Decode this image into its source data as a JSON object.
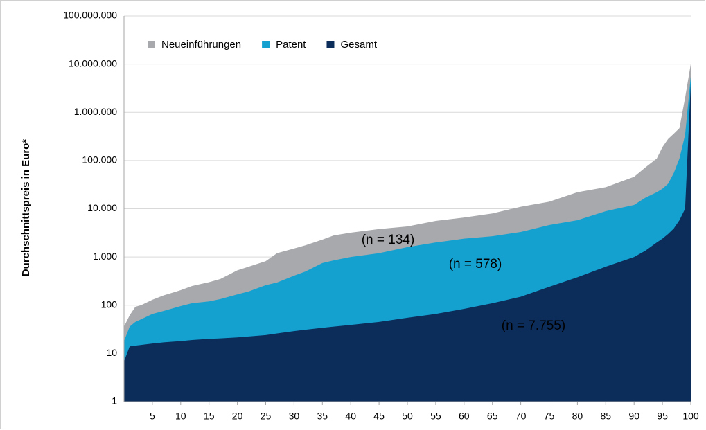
{
  "chart_data": {
    "type": "area",
    "y_label": "Durchschnittspreis in Euro*",
    "log_y": true,
    "grid": true,
    "legend": "top-left",
    "x": [
      0,
      1,
      2,
      3,
      5,
      7,
      10,
      12,
      15,
      17,
      20,
      22,
      25,
      27,
      30,
      32,
      35,
      37,
      40,
      45,
      50,
      55,
      60,
      65,
      70,
      75,
      80,
      85,
      90,
      92,
      94,
      95,
      96,
      97,
      98,
      99,
      100
    ],
    "series": [
      {
        "name": "Neueinführungen",
        "color": "#a7a9ac",
        "values": [
          36,
          62,
          93,
          100,
          130,
          160,
          205,
          250,
          300,
          350,
          530,
          630,
          820,
          1200,
          1500,
          1750,
          2300,
          2800,
          3200,
          3800,
          4300,
          5600,
          6600,
          8000,
          11000,
          14000,
          22000,
          28000,
          46000,
          72000,
          110000,
          190000,
          280000,
          360000,
          470000,
          2000000,
          10000000
        ]
      },
      {
        "name": "Patent",
        "color": "#14a1d0",
        "values": [
          18,
          36,
          45,
          51,
          66,
          76,
          96,
          110,
          120,
          134,
          168,
          193,
          260,
          295,
          410,
          500,
          750,
          850,
          1000,
          1200,
          1600,
          2000,
          2400,
          2700,
          3300,
          4600,
          5800,
          8900,
          12000,
          17000,
          22000,
          26000,
          33000,
          55000,
          110000,
          340000,
          5500000
        ]
      },
      {
        "name": "Gesamt",
        "color": "#0c2c5a",
        "values": [
          6.8,
          14,
          14.5,
          15,
          16,
          17,
          18,
          19,
          20,
          20.5,
          21.5,
          22.5,
          24,
          26,
          29,
          31,
          34,
          36,
          39,
          45,
          55,
          66,
          84,
          110,
          150,
          240,
          380,
          630,
          1000,
          1350,
          2000,
          2400,
          3000,
          3900,
          5800,
          10000,
          4000000
        ]
      }
    ],
    "annotations": [
      "(n = 134)",
      "(n = 578)",
      "(n = 7.755)"
    ],
    "xlim": [
      0,
      100
    ],
    "xticks": [
      5,
      10,
      15,
      20,
      25,
      30,
      35,
      40,
      45,
      50,
      55,
      60,
      65,
      70,
      75,
      80,
      85,
      90,
      95,
      100
    ],
    "ylim": [
      1,
      100000000
    ],
    "yticks": [
      1,
      10,
      100,
      {
        "value": 1000,
        "label": "1.000"
      },
      {
        "value": 10000,
        "label": "10.000"
      },
      {
        "value": 100000,
        "label": "100.000"
      },
      {
        "value": 1000000,
        "label": "1.000.000"
      },
      {
        "value": 10000000,
        "label": "10.000.000"
      },
      {
        "value": 100000000,
        "label": "100.000.000"
      }
    ]
  }
}
